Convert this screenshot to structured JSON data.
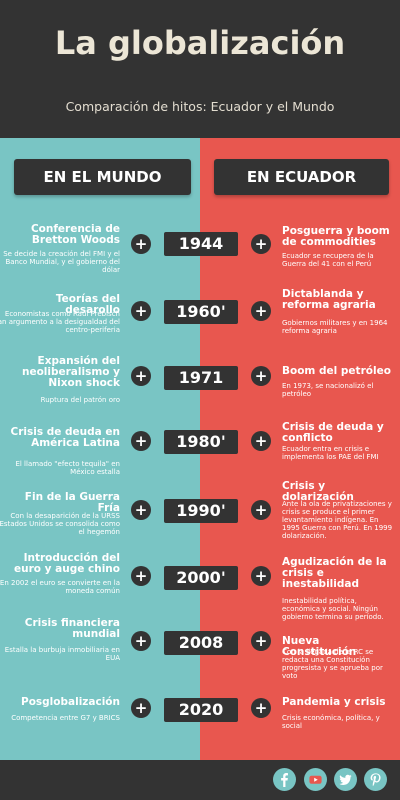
{
  "header": {
    "title": "La globalización",
    "subtitle": "Comparación de hitos: Ecuador y el Mundo"
  },
  "columns": {
    "left": "EN EL MUNDO",
    "right": "EN ECUADOR"
  },
  "plus_symbol": "+",
  "colors": {
    "left_panel": "#79c5c4",
    "right_panel": "#e8574f",
    "dark": "#333333"
  },
  "rows": [
    {
      "year": "1944",
      "world_title": "Conferencia de Bretton Woods",
      "world_desc": "Se decide la creación del FMI y el Banco Mundial, y el gobierno del dólar",
      "ecuador_title": "Posguerra y boom de commodities",
      "ecuador_desc": "Ecuador se recupera de la Guerra del 41 con el Perú"
    },
    {
      "year": "1960'",
      "world_title": "Teorías del desarollo",
      "world_desc": "Economistas como Raúl Prebisch dan argumento a la desigualdad del centro-periferia",
      "ecuador_title": "Dictablanda y reforma agraria",
      "ecuador_desc": "Gobiernos militares y en 1964 reforma agraria"
    },
    {
      "year": "1971",
      "world_title": "Expansión del neoliberalismo y Nixon shock",
      "world_desc": "Ruptura del patrón oro",
      "ecuador_title": "Boom del petróleo",
      "ecuador_desc": "En 1973, se nacionalizó el petróleo"
    },
    {
      "year": "1980'",
      "world_title": "Crisis de deuda en América Latina",
      "world_desc": "El llamado \"efecto tequila\" en México estalla",
      "ecuador_title": "Crisis de deuda y conflicto",
      "ecuador_desc": "Ecuador entra en crisis e implementa los PAE del FMI"
    },
    {
      "year": "1990'",
      "world_title": "Fin de la Guerra Fría",
      "world_desc": "Con la desaparición de la URSS Estados Unidos se consolida como el hegemón",
      "ecuador_title": "Crisis y dolarización",
      "ecuador_desc": "Ante la ola de privatizaciones y crisis se produce el primer levantamiento indígena. En 1995 Guerra con Perú. En 1999 dolarización."
    },
    {
      "year": "2000'",
      "world_title": "Introducción del euro y auge chino",
      "world_desc": "En 2002 el euro se convierte en la moneda común",
      "ecuador_title": "Agudización de la crisis e inestabilidad",
      "ecuador_desc": "Inestabilidad política, económica y social. Ningún gobierno termina su período."
    },
    {
      "year": "2008",
      "world_title": "Crisis financiera mundial",
      "world_desc": "Estalla la burbuja inmobiliaria en EUA",
      "ecuador_title": "Nueva Constitución",
      "ecuador_desc": "Con la llegada de la RC se redacta una Constitución progresista y se aprueba por voto"
    },
    {
      "year": "2020",
      "world_title": "Posglobalización",
      "world_desc": "Competencia entre G7 y BRICS",
      "ecuador_title": "Pandemia y crisis",
      "ecuador_desc": "Crisis económica, política, y social"
    }
  ],
  "social": [
    {
      "icon": "facebook-icon"
    },
    {
      "icon": "youtube-icon"
    },
    {
      "icon": "twitter-icon"
    },
    {
      "icon": "pinterest-icon"
    }
  ]
}
